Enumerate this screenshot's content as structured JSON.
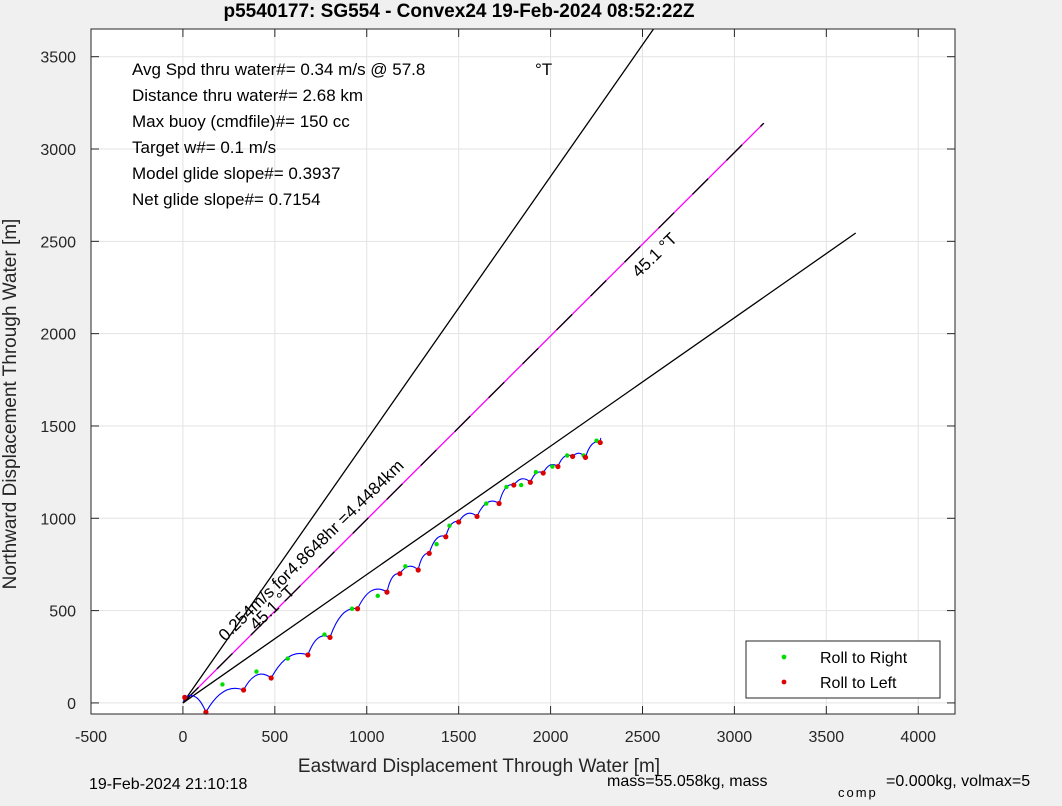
{
  "chart_data": {
    "type": "line",
    "title": "p5540177: SG554 - Convex24 19-Feb-2024 08:52:22Z",
    "xlabel": "Eastward Displacement Through Water [m]",
    "ylabel": "Northward Displacement Through Water [m]",
    "xlim": [
      -500,
      4200
    ],
    "ylim": [
      -60,
      3650
    ],
    "xticks": [
      -500,
      0,
      500,
      1000,
      1500,
      2000,
      2500,
      3000,
      3500,
      4000
    ],
    "yticks": [
      0,
      500,
      1000,
      1500,
      2000,
      2500,
      3000,
      3500
    ],
    "grid": true,
    "info_lines": [
      "Avg Spd thru water#=  0.34 m/s @  57.8",
      "Distance thru water#=  2.68 km",
      "Max buoy (cmdfile)#= 150 cc",
      "Target w#= 0.1 m/s",
      "Model glide slope#= 0.3937",
      "Net glide slope#= 0.7154"
    ],
    "info_degree_label": "°T",
    "lines": [
      {
        "role": "upper-bound",
        "color": "#000000",
        "dash": "",
        "x": [
          0,
          2560
        ],
        "y": [
          0,
          3650
        ]
      },
      {
        "role": "target-heading",
        "color": "#ff00ff",
        "dash": "",
        "x": [
          0,
          3160
        ],
        "y": [
          0,
          3140
        ]
      },
      {
        "role": "target-heading-overlay",
        "color": "#000000",
        "dash": "22 26",
        "x": [
          0,
          3160
        ],
        "y": [
          0,
          3140
        ]
      },
      {
        "role": "lower-bound",
        "color": "#000000",
        "dash": "",
        "x": [
          0,
          3660
        ],
        "y": [
          0,
          2545
        ]
      }
    ],
    "annotations": [
      {
        "text": "0.254m/s for4.8648hr =4.4484km",
        "x": 230,
        "y": 330,
        "rotate": -44.3
      },
      {
        "text": "45.1 °T",
        "x": 400,
        "y": 390,
        "rotate": -44.3
      },
      {
        "text": "45.1 °T",
        "x": 2480,
        "y": 2300,
        "rotate": -44.3
      }
    ],
    "track": {
      "color": "#0000ff",
      "start": [
        5,
        10
      ],
      "loop_points": [
        [
          10,
          30
        ],
        [
          125,
          -50
        ],
        [
          330,
          70
        ],
        [
          480,
          135
        ],
        [
          680,
          260
        ],
        [
          800,
          355
        ],
        [
          950,
          510
        ],
        [
          1110,
          600
        ],
        [
          1180,
          700
        ],
        [
          1280,
          720
        ],
        [
          1340,
          810
        ],
        [
          1430,
          900
        ],
        [
          1500,
          980
        ],
        [
          1600,
          1010
        ],
        [
          1720,
          1080
        ],
        [
          1800,
          1180
        ],
        [
          1890,
          1195
        ],
        [
          1960,
          1245
        ],
        [
          2040,
          1280
        ],
        [
          2120,
          1335
        ],
        [
          2190,
          1330
        ],
        [
          2270,
          1410
        ]
      ],
      "end": [
        2275,
        1435
      ],
      "roll_right_points": [
        [
          215,
          100
        ],
        [
          400,
          170
        ],
        [
          570,
          240
        ],
        [
          770,
          370
        ],
        [
          920,
          510
        ],
        [
          1060,
          580
        ],
        [
          1210,
          740
        ],
        [
          1380,
          860
        ],
        [
          1450,
          960
        ],
        [
          1650,
          1080
        ],
        [
          1760,
          1170
        ],
        [
          1840,
          1180
        ],
        [
          1920,
          1250
        ],
        [
          2010,
          1280
        ],
        [
          2090,
          1340
        ],
        [
          2180,
          1340
        ],
        [
          2250,
          1420
        ]
      ],
      "roll_left_points": [
        [
          10,
          30
        ],
        [
          125,
          -50
        ],
        [
          330,
          70
        ],
        [
          480,
          135
        ],
        [
          680,
          260
        ],
        [
          800,
          355
        ],
        [
          950,
          510
        ],
        [
          1110,
          600
        ],
        [
          1180,
          700
        ],
        [
          1280,
          720
        ],
        [
          1340,
          810
        ],
        [
          1430,
          900
        ],
        [
          1500,
          980
        ],
        [
          1600,
          1010
        ],
        [
          1720,
          1080
        ],
        [
          1800,
          1180
        ],
        [
          1890,
          1195
        ],
        [
          1960,
          1245
        ],
        [
          2040,
          1280
        ],
        [
          2120,
          1335
        ],
        [
          2190,
          1330
        ],
        [
          2270,
          1410
        ]
      ]
    },
    "legend": {
      "position": "bottom-right",
      "entries": [
        {
          "label": "Roll to Right",
          "color": "#00dd00"
        },
        {
          "label": "Roll to Left",
          "color": "#dd0000"
        }
      ]
    }
  },
  "footer": {
    "timestamp": "19-Feb-2024 21:10:18",
    "mass_text": "mass=55.058kg, mass",
    "comp_subscript": "comp",
    "rest_text": "=0.000kg, volmax=5"
  }
}
